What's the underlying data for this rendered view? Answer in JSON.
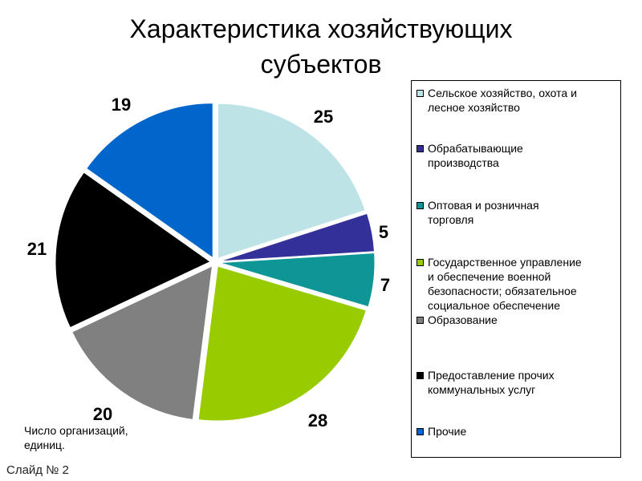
{
  "title_line1": "Характеристика хозяйствующих",
  "title_line2": "субъектов",
  "caption_line1": "Число организаций,",
  "caption_line2": "единиц.",
  "slide_label": "Слайд № 2",
  "chart_data": {
    "type": "pie",
    "title": "Характеристика хозяйствующих субъектов",
    "legend_position": "right",
    "categories": [
      "Сельское хозяйство, охота и лесное хозяйство",
      "Обрабатывающие производства",
      "Оптовая и розничная торговля",
      "Государственное управление и обеспечение военной безопасности; обязательное социальное обеспечение",
      "Образование",
      "Предоставление прочих коммунальных услуг",
      "Прочие"
    ],
    "values": [
      25,
      5,
      7,
      28,
      20,
      21,
      19
    ],
    "colors": [
      "#BEE3E6",
      "#34309A",
      "#0E9696",
      "#98CB00",
      "#808080",
      "#000000",
      "#0066CC"
    ],
    "legend": [
      [
        "Сельское хозяйство, охота и",
        "лесное хозяйство"
      ],
      [
        "Обрабатывающие",
        "производства"
      ],
      [
        "Оптовая и розничная",
        "торговля"
      ],
      [
        "Государственное управление",
        "и обеспечение военной",
        "безопасности; обязательное",
        "социальное обеспечение"
      ],
      [
        "Образование"
      ],
      [
        "Предоставление прочих",
        "коммунальных услуг"
      ],
      [
        "Прочие"
      ]
    ]
  }
}
